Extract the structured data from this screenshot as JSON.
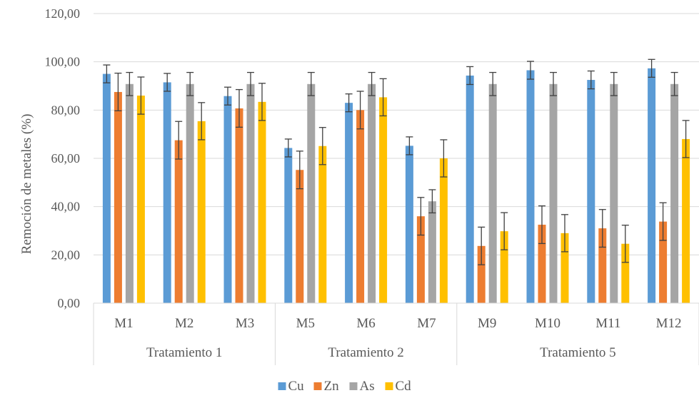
{
  "chart_data": {
    "type": "bar",
    "title": "",
    "xlabel": "",
    "ylabel": "Remoción de metales (%)",
    "ylim": [
      0,
      120
    ],
    "yticks": [
      "0,00",
      "20,00",
      "40,00",
      "60,00",
      "80,00",
      "100,00",
      "120,00"
    ],
    "grid": true,
    "legend_position": "bottom",
    "categories": [
      "M1",
      "M2",
      "M3",
      "M5",
      "M6",
      "M7",
      "M9",
      "M10",
      "M11",
      "M12"
    ],
    "groups": [
      {
        "label": "Tratamiento 1",
        "members": [
          "M1",
          "M2",
          "M3"
        ]
      },
      {
        "label": "Tratamiento 2",
        "members": [
          "M5",
          "M6",
          "M7"
        ]
      },
      {
        "label": "Tratamiento 5",
        "members": [
          "M9",
          "M10",
          "M11",
          "M12"
        ]
      }
    ],
    "series": [
      {
        "name": "Cu",
        "color": "#5B9BD5",
        "values": [
          95,
          91.5,
          85.8,
          64.3,
          83,
          65.2,
          94.3,
          96.5,
          92.5,
          97.3
        ],
        "errors": [
          3.7,
          3.7,
          3.7,
          3.7,
          3.7,
          3.7,
          3.7,
          3.7,
          3.7,
          3.7
        ]
      },
      {
        "name": "Zn",
        "color": "#ED7D31",
        "values": [
          87.5,
          67.5,
          80.7,
          55.2,
          80,
          36,
          23.7,
          32.5,
          31,
          33.8
        ],
        "errors": [
          7.8,
          7.8,
          7.8,
          7.8,
          7.8,
          7.8,
          7.8,
          7.8,
          7.8,
          7.8
        ]
      },
      {
        "name": "As",
        "color": "#A5A5A5",
        "values": [
          90.8,
          90.8,
          90.8,
          90.8,
          90.8,
          42.2,
          90.8,
          90.8,
          90.8,
          90.8
        ],
        "errors": [
          4.8,
          4.8,
          4.8,
          4.8,
          4.8,
          4.8,
          4.8,
          4.8,
          4.8,
          4.8
        ]
      },
      {
        "name": "Cd",
        "color": "#FFC000",
        "values": [
          86,
          75.4,
          83.4,
          65.1,
          85.3,
          60,
          29.8,
          29,
          24.6,
          68
        ],
        "errors": [
          7.7,
          7.7,
          7.7,
          7.7,
          7.7,
          7.7,
          7.7,
          7.7,
          7.7,
          7.7
        ]
      }
    ]
  }
}
